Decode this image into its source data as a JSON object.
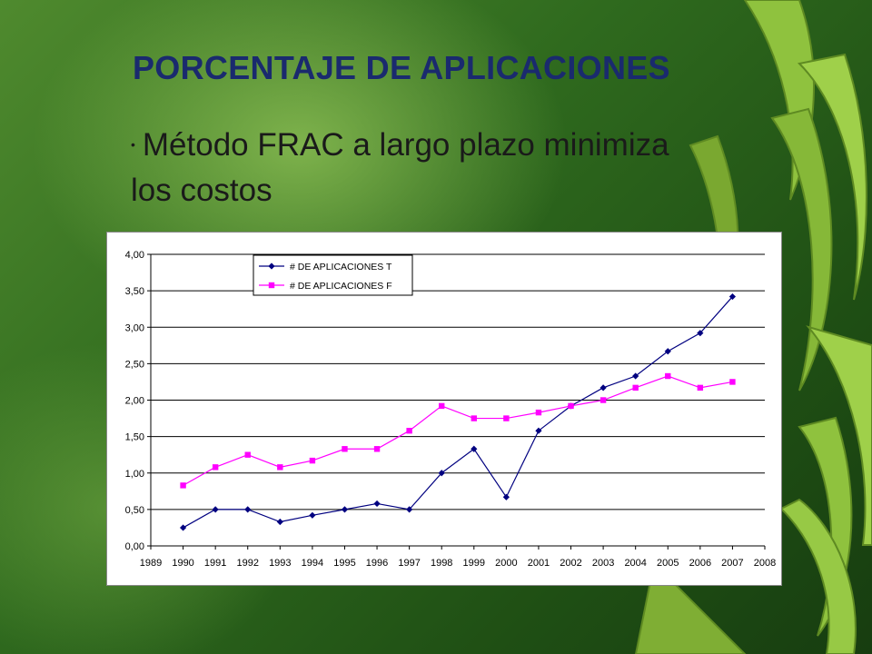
{
  "slide": {
    "title": "PORCENTAJE DE APLICACIONES",
    "bullet": "Método FRAC  a largo plazo minimiza los costos"
  },
  "chart_data": {
    "type": "line",
    "title": "",
    "xlabel": "",
    "ylabel": "",
    "x_ticks": [
      "1989",
      "1990",
      "1991",
      "1992",
      "1993",
      "1994",
      "1995",
      "1996",
      "1997",
      "1998",
      "1999",
      "2000",
      "2001",
      "2002",
      "2003",
      "2004",
      "2005",
      "2006",
      "2007",
      "2008"
    ],
    "y_ticks": [
      "0,00",
      "0,50",
      "1,00",
      "1,50",
      "2,00",
      "2,50",
      "3,00",
      "3,50",
      "4,00"
    ],
    "xlim": [
      1989,
      2008
    ],
    "ylim": [
      0,
      4
    ],
    "grid": true,
    "legend_position": "top-left",
    "categories": [
      1990,
      1991,
      1992,
      1993,
      1994,
      1995,
      1996,
      1997,
      1998,
      1999,
      2000,
      2001,
      2002,
      2003,
      2004,
      2005,
      2006,
      2007
    ],
    "series": [
      {
        "name": "# DE APLICACIONES T",
        "color": "#000080",
        "marker": "diamond",
        "values": [
          0.25,
          0.5,
          0.5,
          0.33,
          0.42,
          0.5,
          0.58,
          0.5,
          1.0,
          1.33,
          0.67,
          1.58,
          1.92,
          2.17,
          2.33,
          2.67,
          2.92,
          3.42
        ]
      },
      {
        "name": "# DE APLICACIONES F",
        "color": "#ff00ff",
        "marker": "square",
        "values": [
          0.83,
          1.08,
          1.25,
          1.08,
          1.17,
          1.33,
          1.33,
          1.58,
          1.92,
          1.75,
          1.75,
          1.83,
          1.92,
          2.0,
          2.17,
          2.33,
          2.17,
          2.25
        ]
      }
    ]
  }
}
